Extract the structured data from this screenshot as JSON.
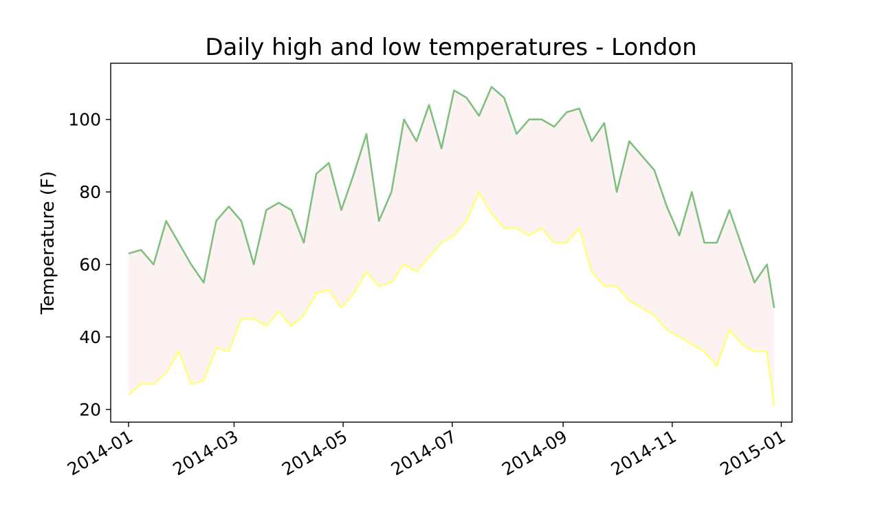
{
  "chart_data": {
    "type": "line",
    "title": "Daily high and low temperatures - London",
    "xlabel": "",
    "ylabel": "Temperature (F)",
    "x_axis": {
      "kind": "date",
      "range": [
        "2013-12-22",
        "2015-01-07"
      ],
      "ticks": [
        "2014-01-01",
        "2014-03-01",
        "2014-05-01",
        "2014-07-01",
        "2014-09-01",
        "2014-11-01",
        "2015-01-01"
      ],
      "tick_labels": [
        "2014-01",
        "2014-03",
        "2014-05",
        "2014-07",
        "2014-09",
        "2014-11",
        "2015-01"
      ]
    },
    "y_axis": {
      "range": [
        16.5,
        115.5
      ],
      "ticks": [
        20,
        40,
        60,
        80,
        100
      ],
      "tick_labels": [
        "20",
        "40",
        "60",
        "80",
        "100"
      ]
    },
    "grid": false,
    "legend": "none",
    "fill_between": {
      "color": "#fdf2f2",
      "between": [
        "highs",
        "lows"
      ]
    },
    "colors": {
      "highs": "#7fbf7f",
      "lows": "#ffff7f",
      "fill": "#fdf2f2",
      "axes": "#000000"
    },
    "series": [
      {
        "key": "highs",
        "x": [
          "2014-01-01",
          "2014-01-08",
          "2014-01-15",
          "2014-01-22",
          "2014-01-29",
          "2014-02-05",
          "2014-02-12",
          "2014-02-19",
          "2014-02-26",
          "2014-03-05",
          "2014-03-12",
          "2014-03-19",
          "2014-03-26",
          "2014-04-02",
          "2014-04-09",
          "2014-04-16",
          "2014-04-23",
          "2014-04-30",
          "2014-05-07",
          "2014-05-14",
          "2014-05-21",
          "2014-05-28",
          "2014-06-04",
          "2014-06-11",
          "2014-06-18",
          "2014-06-25",
          "2014-07-02",
          "2014-07-09",
          "2014-07-16",
          "2014-07-23",
          "2014-07-30",
          "2014-08-06",
          "2014-08-13",
          "2014-08-20",
          "2014-08-27",
          "2014-09-03",
          "2014-09-10",
          "2014-09-17",
          "2014-09-24",
          "2014-10-01",
          "2014-10-08",
          "2014-10-15",
          "2014-10-22",
          "2014-10-29",
          "2014-11-05",
          "2014-11-12",
          "2014-11-19",
          "2014-11-26",
          "2014-12-03",
          "2014-12-10",
          "2014-12-17",
          "2014-12-24",
          "2014-12-28"
        ],
        "values": [
          63,
          64,
          60,
          72,
          66,
          60,
          55,
          72,
          76,
          72,
          60,
          75,
          77,
          75,
          66,
          85,
          88,
          75,
          85,
          96,
          72,
          80,
          100,
          94,
          104,
          92,
          108,
          106,
          101,
          109,
          106,
          96,
          100,
          100,
          98,
          102,
          103,
          94,
          99,
          80,
          94,
          90,
          86,
          76,
          68,
          80,
          66,
          66,
          75,
          65,
          55,
          60,
          48
        ]
      },
      {
        "key": "lows",
        "x": [
          "2014-01-01",
          "2014-01-08",
          "2014-01-15",
          "2014-01-22",
          "2014-01-29",
          "2014-02-05",
          "2014-02-12",
          "2014-02-19",
          "2014-02-26",
          "2014-03-05",
          "2014-03-12",
          "2014-03-19",
          "2014-03-26",
          "2014-04-02",
          "2014-04-09",
          "2014-04-16",
          "2014-04-23",
          "2014-04-30",
          "2014-05-07",
          "2014-05-14",
          "2014-05-21",
          "2014-05-28",
          "2014-06-04",
          "2014-06-11",
          "2014-06-18",
          "2014-06-25",
          "2014-07-02",
          "2014-07-09",
          "2014-07-16",
          "2014-07-23",
          "2014-07-30",
          "2014-08-06",
          "2014-08-13",
          "2014-08-20",
          "2014-08-27",
          "2014-09-03",
          "2014-09-10",
          "2014-09-17",
          "2014-09-24",
          "2014-10-01",
          "2014-10-08",
          "2014-10-15",
          "2014-10-22",
          "2014-10-29",
          "2014-11-05",
          "2014-11-12",
          "2014-11-19",
          "2014-11-26",
          "2014-12-03",
          "2014-12-10",
          "2014-12-17",
          "2014-12-24",
          "2014-12-28"
        ],
        "values": [
          24,
          27,
          27,
          30,
          36,
          27,
          28,
          37,
          36,
          45,
          45,
          43,
          47,
          43,
          46,
          52,
          53,
          48,
          52,
          58,
          54,
          55,
          60,
          58,
          62,
          66,
          68,
          72,
          80,
          74,
          70,
          70,
          68,
          70,
          66,
          66,
          70,
          58,
          54,
          54,
          50,
          48,
          46,
          42,
          40,
          38,
          36,
          32,
          42,
          38,
          36,
          36,
          21
        ]
      }
    ]
  }
}
